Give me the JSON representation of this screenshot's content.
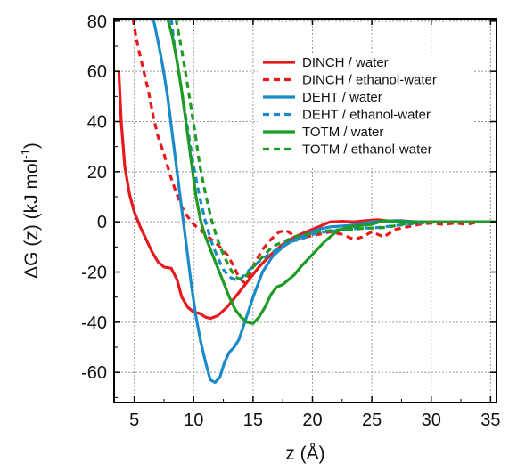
{
  "chart_data": {
    "type": "line",
    "title": "",
    "xlabel": "z (Å)",
    "ylabel_main": "ΔG (z) (kJ mol",
    "ylabel_sup": "-1",
    "ylabel_close": ")",
    "xlim": [
      3.3,
      35.5
    ],
    "ylim": [
      -72,
      81
    ],
    "xticks": [
      5,
      10,
      15,
      20,
      25,
      30,
      35
    ],
    "xtick_labels": [
      "5",
      "10",
      "15",
      "20",
      "25",
      "30",
      "35"
    ],
    "yticks": [
      -60,
      -40,
      -20,
      0,
      20,
      40,
      60,
      80
    ],
    "ytick_labels": [
      "-60",
      "-40",
      "-20",
      "0",
      "20",
      "40",
      "60",
      "80"
    ],
    "grid": true,
    "legend_position": "top-right",
    "series": [
      {
        "name": "DINCH / water",
        "color": "#e8191d",
        "dash": "solid",
        "points": [
          [
            3.7,
            60
          ],
          [
            3.9,
            40
          ],
          [
            4.2,
            22
          ],
          [
            4.6,
            11
          ],
          [
            5.0,
            4
          ],
          [
            5.5,
            -2
          ],
          [
            6.0,
            -7
          ],
          [
            6.5,
            -12
          ],
          [
            7.0,
            -16
          ],
          [
            7.5,
            -18
          ],
          [
            8.1,
            -18.5
          ],
          [
            8.6,
            -23
          ],
          [
            9.0,
            -30
          ],
          [
            9.5,
            -34
          ],
          [
            10.0,
            -36
          ],
          [
            10.5,
            -36.5
          ],
          [
            11.0,
            -38
          ],
          [
            11.4,
            -38.5
          ],
          [
            12.0,
            -37.5
          ],
          [
            12.8,
            -34
          ],
          [
            13.5,
            -30
          ],
          [
            14.5,
            -24
          ],
          [
            15.5,
            -18
          ],
          [
            16.5,
            -13
          ],
          [
            17.5,
            -9
          ],
          [
            18.5,
            -6
          ],
          [
            19.5,
            -4
          ],
          [
            20.5,
            -2
          ],
          [
            21.5,
            0
          ],
          [
            22.5,
            0.2
          ],
          [
            23.5,
            0
          ],
          [
            24.5,
            0.5
          ],
          [
            25.5,
            0.8
          ],
          [
            26.5,
            0.3
          ],
          [
            27.5,
            0.5
          ],
          [
            28.5,
            0
          ],
          [
            30,
            0
          ],
          [
            32,
            0
          ],
          [
            35.5,
            0
          ]
        ]
      },
      {
        "name": "DINCH / ethanol-water",
        "color": "#e8191d",
        "dash": "dashed",
        "points": [
          [
            4.9,
            81
          ],
          [
            5.1,
            75
          ],
          [
            5.4,
            68
          ],
          [
            5.8,
            60
          ],
          [
            6.2,
            52
          ],
          [
            6.6,
            42
          ],
          [
            7.0,
            34
          ],
          [
            7.5,
            27
          ],
          [
            8.0,
            19
          ],
          [
            8.5,
            12
          ],
          [
            9.0,
            6
          ],
          [
            9.5,
            2
          ],
          [
            10.0,
            -1
          ],
          [
            11.0,
            -5
          ],
          [
            12.0,
            -9
          ],
          [
            12.8,
            -13
          ],
          [
            13.3,
            -17
          ],
          [
            13.8,
            -22
          ],
          [
            14.2,
            -24
          ],
          [
            14.7,
            -21
          ],
          [
            15.2,
            -16
          ],
          [
            15.8,
            -11
          ],
          [
            16.5,
            -7
          ],
          [
            17.2,
            -4
          ],
          [
            17.8,
            -3.5
          ],
          [
            18.3,
            -5
          ],
          [
            18.8,
            -7
          ],
          [
            19.5,
            -6
          ],
          [
            20.5,
            -5
          ],
          [
            21.5,
            -4
          ],
          [
            22.5,
            -5
          ],
          [
            23.5,
            -7
          ],
          [
            24.2,
            -6
          ],
          [
            25,
            -4
          ],
          [
            26,
            -6
          ],
          [
            27,
            -3
          ],
          [
            28,
            -2
          ],
          [
            29,
            -1
          ],
          [
            30,
            -0.5
          ],
          [
            31,
            -1
          ],
          [
            32,
            -0.5
          ],
          [
            33,
            -1
          ],
          [
            34,
            0
          ],
          [
            35.5,
            0
          ]
        ]
      },
      {
        "name": "DEHT / water",
        "color": "#1a8ac8",
        "dash": "solid",
        "points": [
          [
            6.6,
            81
          ],
          [
            7.0,
            72
          ],
          [
            7.4,
            62
          ],
          [
            7.8,
            50
          ],
          [
            8.2,
            35
          ],
          [
            8.6,
            20
          ],
          [
            9.0,
            5
          ],
          [
            9.4,
            -10
          ],
          [
            9.8,
            -25
          ],
          [
            10.2,
            -38
          ],
          [
            10.6,
            -48
          ],
          [
            11.0,
            -56
          ],
          [
            11.4,
            -63
          ],
          [
            11.8,
            -64
          ],
          [
            12.2,
            -62
          ],
          [
            12.6,
            -56
          ],
          [
            13.0,
            -52
          ],
          [
            13.4,
            -50
          ],
          [
            13.8,
            -47
          ],
          [
            14.3,
            -40
          ],
          [
            15.0,
            -30
          ],
          [
            15.8,
            -20
          ],
          [
            16.6,
            -14
          ],
          [
            17.5,
            -10
          ],
          [
            18.5,
            -7
          ],
          [
            19.5,
            -5
          ],
          [
            20.5,
            -3
          ],
          [
            21.5,
            -2
          ],
          [
            23,
            -1.5
          ],
          [
            25,
            0
          ],
          [
            27,
            0.5
          ],
          [
            29,
            0
          ],
          [
            32,
            0
          ],
          [
            35.5,
            0
          ]
        ]
      },
      {
        "name": "DEHT / ethanol-water",
        "color": "#1a8ac8",
        "dash": "dashed",
        "points": [
          [
            8.1,
            81
          ],
          [
            8.4,
            70
          ],
          [
            8.8,
            58
          ],
          [
            9.2,
            46
          ],
          [
            9.6,
            34
          ],
          [
            10.0,
            22
          ],
          [
            10.5,
            10
          ],
          [
            11.0,
            0
          ],
          [
            11.5,
            -8
          ],
          [
            12.0,
            -14
          ],
          [
            12.5,
            -19
          ],
          [
            13.0,
            -22
          ],
          [
            13.5,
            -23
          ],
          [
            14.0,
            -22.5
          ],
          [
            14.5,
            -20
          ],
          [
            15.2,
            -17
          ],
          [
            16.0,
            -14
          ],
          [
            17.0,
            -11
          ],
          [
            18.0,
            -8
          ],
          [
            19.0,
            -7
          ],
          [
            20.0,
            -5
          ],
          [
            21.0,
            -4
          ],
          [
            22.0,
            -3.5
          ],
          [
            23.0,
            -3
          ],
          [
            24.0,
            -2.5
          ],
          [
            25.0,
            -2.5
          ],
          [
            26.0,
            -2
          ],
          [
            27.0,
            -1.5
          ],
          [
            28.0,
            -1
          ],
          [
            29.0,
            -0.5
          ],
          [
            30.0,
            -0.2
          ],
          [
            32,
            0
          ],
          [
            35.5,
            0
          ]
        ]
      },
      {
        "name": "TOTM / water",
        "color": "#1e9b24",
        "dash": "solid",
        "points": [
          [
            7.8,
            81
          ],
          [
            8.2,
            74
          ],
          [
            8.6,
            64
          ],
          [
            9.0,
            52
          ],
          [
            9.4,
            38
          ],
          [
            9.8,
            24
          ],
          [
            10.2,
            10
          ],
          [
            10.6,
            0
          ],
          [
            11.0,
            -6
          ],
          [
            11.5,
            -12
          ],
          [
            12.0,
            -18
          ],
          [
            12.5,
            -24
          ],
          [
            13.0,
            -30
          ],
          [
            13.5,
            -35
          ],
          [
            14.0,
            -38
          ],
          [
            14.5,
            -40
          ],
          [
            15.0,
            -40.5
          ],
          [
            15.5,
            -38
          ],
          [
            16.0,
            -34
          ],
          [
            16.5,
            -29
          ],
          [
            17.0,
            -26
          ],
          [
            17.5,
            -25
          ],
          [
            18.0,
            -23
          ],
          [
            18.5,
            -21
          ],
          [
            19.0,
            -18
          ],
          [
            20.0,
            -13
          ],
          [
            21.0,
            -8
          ],
          [
            22.0,
            -4
          ],
          [
            23.0,
            -2
          ],
          [
            24.0,
            -1.5
          ],
          [
            25.0,
            -1
          ],
          [
            26.0,
            0.5
          ],
          [
            27.5,
            0
          ],
          [
            30,
            0
          ],
          [
            35.5,
            0
          ]
        ]
      },
      {
        "name": "TOTM / ethanol-water",
        "color": "#1e9b24",
        "dash": "dashed",
        "points": [
          [
            8.5,
            81
          ],
          [
            8.9,
            71
          ],
          [
            9.3,
            60
          ],
          [
            9.7,
            48
          ],
          [
            10.1,
            36
          ],
          [
            10.5,
            23
          ],
          [
            11.0,
            11
          ],
          [
            11.5,
            1
          ],
          [
            12.0,
            -7
          ],
          [
            12.5,
            -13
          ],
          [
            13.0,
            -18
          ],
          [
            13.5,
            -22
          ],
          [
            14.0,
            -23
          ],
          [
            14.5,
            -21
          ],
          [
            15.0,
            -18
          ],
          [
            15.8,
            -14
          ],
          [
            16.6,
            -10
          ],
          [
            17.5,
            -8
          ],
          [
            18.5,
            -6
          ],
          [
            19.5,
            -5
          ],
          [
            20.5,
            -4
          ],
          [
            21.5,
            -3.5
          ],
          [
            22.5,
            -3
          ],
          [
            23.5,
            -3
          ],
          [
            24.5,
            -2.5
          ],
          [
            25.5,
            -2.5
          ],
          [
            26.5,
            -2
          ],
          [
            27.5,
            -1
          ],
          [
            28.5,
            -0.5
          ],
          [
            30,
            0
          ],
          [
            32,
            0
          ],
          [
            35.5,
            0
          ]
        ]
      }
    ]
  }
}
